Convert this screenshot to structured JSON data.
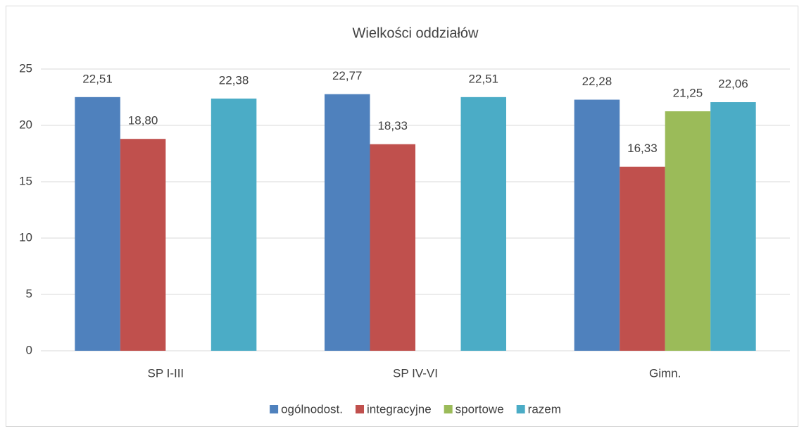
{
  "chart_data": {
    "type": "bar",
    "title": "Wielkości oddziałów",
    "categories": [
      "SP I-III",
      "SP IV-VI",
      "Gimn."
    ],
    "series": [
      {
        "name": "ogólnodost.",
        "color": "#4f81bd",
        "values": [
          22.51,
          22.77,
          22.28
        ],
        "value_labels": [
          "22,51",
          "22,77",
          "22,28"
        ]
      },
      {
        "name": "integracyjne",
        "color": "#c0504d",
        "values": [
          18.8,
          18.33,
          16.33
        ],
        "value_labels": [
          "18,80",
          "18,33",
          "16,33"
        ]
      },
      {
        "name": "sportowe",
        "color": "#9bbb59",
        "values": [
          null,
          null,
          21.25
        ],
        "value_labels": [
          null,
          null,
          "21,25"
        ]
      },
      {
        "name": "razem",
        "color": "#4bacc6",
        "values": [
          22.38,
          22.51,
          22.06
        ],
        "value_labels": [
          "22,38",
          "22,51",
          "22,06"
        ]
      }
    ],
    "ylim": [
      0,
      25
    ],
    "yticks": [
      0,
      5,
      10,
      15,
      20,
      25
    ],
    "grid": true,
    "legend": "bottom"
  }
}
